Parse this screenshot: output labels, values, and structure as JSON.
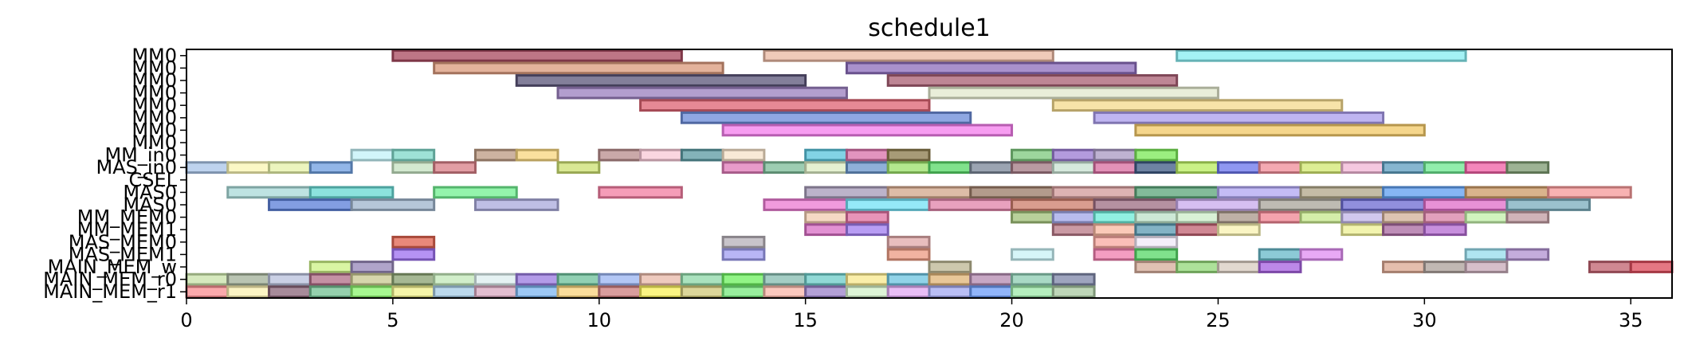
{
  "chart_data": {
    "type": "gantt",
    "title": "schedule1",
    "xlim": [
      0,
      36
    ],
    "x_ticks": [
      0,
      5,
      10,
      15,
      20,
      25,
      30,
      35
    ],
    "rows": [
      "MM0",
      "MM0",
      "MM0",
      "MM0",
      "MM0",
      "MM0",
      "MM0",
      "MM0",
      "MM_in0",
      "MAS_in0",
      "CSEL",
      "MAS0",
      "MAS0",
      "MM_MEM0",
      "MM_MEM1",
      "MAS_MEM0",
      "MAS_MEM1",
      "MAIN_MEM_w",
      "MAIN_MEM_r0",
      "MAIN_MEM_r1"
    ],
    "tasks": [
      {
        "row": 0,
        "start": 5,
        "end": 12,
        "color": "#a8485e"
      },
      {
        "row": 0,
        "start": 14,
        "end": 21,
        "color": "#e9b8a2"
      },
      {
        "row": 0,
        "start": 24,
        "end": 31,
        "color": "#86edf2"
      },
      {
        "row": 1,
        "start": 6,
        "end": 13,
        "color": "#d9987a"
      },
      {
        "row": 1,
        "start": 16,
        "end": 23,
        "color": "#8c6cbc"
      },
      {
        "row": 2,
        "start": 8,
        "end": 15,
        "color": "#5a5478"
      },
      {
        "row": 2,
        "start": 17,
        "end": 24,
        "color": "#a85d72"
      },
      {
        "row": 3,
        "start": 9,
        "end": 16,
        "color": "#9a7ebe"
      },
      {
        "row": 3,
        "start": 18,
        "end": 25,
        "color": "#e2e8cc"
      },
      {
        "row": 4,
        "start": 11,
        "end": 18,
        "color": "#dd6271"
      },
      {
        "row": 4,
        "start": 21,
        "end": 28,
        "color": "#f4d98c"
      },
      {
        "row": 5,
        "start": 12,
        "end": 19,
        "color": "#6a8ad8"
      },
      {
        "row": 5,
        "start": 22,
        "end": 29,
        "color": "#aa9cec"
      },
      {
        "row": 6,
        "start": 13,
        "end": 20,
        "color": "#f47cec"
      },
      {
        "row": 6,
        "start": 23,
        "end": 30,
        "color": "#f2c866"
      },
      {
        "row": 8,
        "start": 4,
        "end": 5,
        "color": "#c2f2f8"
      },
      {
        "row": 8,
        "start": 5,
        "end": 6,
        "color": "#7ed8c8"
      },
      {
        "row": 8,
        "start": 7,
        "end": 8,
        "color": "#bc9a82"
      },
      {
        "row": 8,
        "start": 8,
        "end": 9,
        "color": "#f8d67e"
      },
      {
        "row": 8,
        "start": 10,
        "end": 11,
        "color": "#b88c8c"
      },
      {
        "row": 8,
        "start": 11,
        "end": 12,
        "color": "#f8c8d6"
      },
      {
        "row": 8,
        "start": 12,
        "end": 13,
        "color": "#5a9aa2"
      },
      {
        "row": 8,
        "start": 13,
        "end": 14,
        "color": "#f6e2c8"
      },
      {
        "row": 8,
        "start": 15,
        "end": 16,
        "color": "#58c4dc"
      },
      {
        "row": 8,
        "start": 16,
        "end": 17,
        "color": "#d870a8"
      },
      {
        "row": 8,
        "start": 17,
        "end": 18,
        "color": "#8a7a4a"
      },
      {
        "row": 8,
        "start": 20,
        "end": 21,
        "color": "#7cc87c"
      },
      {
        "row": 8,
        "start": 21,
        "end": 22,
        "color": "#9a7ad2"
      },
      {
        "row": 8,
        "start": 22,
        "end": 23,
        "color": "#a898c2"
      },
      {
        "row": 8,
        "start": 23,
        "end": 24,
        "color": "#7ae856"
      },
      {
        "row": 9,
        "start": 0,
        "end": 1,
        "color": "#a8c4e8"
      },
      {
        "row": 9,
        "start": 1,
        "end": 2,
        "color": "#faf6b2"
      },
      {
        "row": 9,
        "start": 2,
        "end": 3,
        "color": "#e6f2a8"
      },
      {
        "row": 9,
        "start": 3,
        "end": 4,
        "color": "#6e9ee0"
      },
      {
        "row": 9,
        "start": 5,
        "end": 6,
        "color": "#c4e2c0"
      },
      {
        "row": 9,
        "start": 6,
        "end": 7,
        "color": "#d87e86"
      },
      {
        "row": 9,
        "start": 9,
        "end": 10,
        "color": "#cce070"
      },
      {
        "row": 9,
        "start": 13,
        "end": 14,
        "color": "#e07ab8"
      },
      {
        "row": 9,
        "start": 14,
        "end": 15,
        "color": "#7cbc98"
      },
      {
        "row": 9,
        "start": 15,
        "end": 16,
        "color": "#dcecc2"
      },
      {
        "row": 9,
        "start": 16,
        "end": 17,
        "color": "#6a96cc"
      },
      {
        "row": 9,
        "start": 17,
        "end": 18,
        "color": "#9ae068"
      },
      {
        "row": 9,
        "start": 18,
        "end": 19,
        "color": "#56d866"
      },
      {
        "row": 9,
        "start": 19,
        "end": 20,
        "color": "#7a8698"
      },
      {
        "row": 9,
        "start": 20,
        "end": 21,
        "color": "#a27882"
      },
      {
        "row": 9,
        "start": 21,
        "end": 22,
        "color": "#c8e2d2"
      },
      {
        "row": 9,
        "start": 22,
        "end": 23,
        "color": "#d86ca0"
      },
      {
        "row": 9,
        "start": 23,
        "end": 24,
        "color": "#3e5a84"
      },
      {
        "row": 9,
        "start": 24,
        "end": 25,
        "color": "#b8ec5e"
      },
      {
        "row": 9,
        "start": 25,
        "end": 26,
        "color": "#6a74ec"
      },
      {
        "row": 9,
        "start": 26,
        "end": 27,
        "color": "#f08c98"
      },
      {
        "row": 9,
        "start": 27,
        "end": 28,
        "color": "#d2e870"
      },
      {
        "row": 9,
        "start": 28,
        "end": 29,
        "color": "#f2b6d6"
      },
      {
        "row": 9,
        "start": 29,
        "end": 30,
        "color": "#5e9ec0"
      },
      {
        "row": 9,
        "start": 30,
        "end": 31,
        "color": "#6ce890"
      },
      {
        "row": 9,
        "start": 31,
        "end": 32,
        "color": "#f05ea4"
      },
      {
        "row": 9,
        "start": 32,
        "end": 33,
        "color": "#7c9a70"
      },
      {
        "row": 11,
        "start": 1,
        "end": 3,
        "color": "#a8dad8"
      },
      {
        "row": 11,
        "start": 3,
        "end": 5,
        "color": "#66d8d2"
      },
      {
        "row": 11,
        "start": 6,
        "end": 8,
        "color": "#70f090"
      },
      {
        "row": 11,
        "start": 10,
        "end": 12,
        "color": "#f27ca0"
      },
      {
        "row": 11,
        "start": 15,
        "end": 17,
        "color": "#a69ab8"
      },
      {
        "row": 11,
        "start": 17,
        "end": 19,
        "color": "#d2a68a"
      },
      {
        "row": 11,
        "start": 19,
        "end": 21,
        "color": "#9a7a66"
      },
      {
        "row": 11,
        "start": 21,
        "end": 23,
        "color": "#d29a9a"
      },
      {
        "row": 11,
        "start": 23,
        "end": 25,
        "color": "#5aa478"
      },
      {
        "row": 11,
        "start": 25,
        "end": 27,
        "color": "#b0a6f2"
      },
      {
        "row": 11,
        "start": 27,
        "end": 29,
        "color": "#b0a688"
      },
      {
        "row": 11,
        "start": 29,
        "end": 31,
        "color": "#5e9ef0"
      },
      {
        "row": 11,
        "start": 31,
        "end": 33,
        "color": "#cc9a66"
      },
      {
        "row": 11,
        "start": 33,
        "end": 35,
        "color": "#f69898"
      },
      {
        "row": 12,
        "start": 2,
        "end": 4,
        "color": "#5a7ed8"
      },
      {
        "row": 12,
        "start": 4,
        "end": 6,
        "color": "#9eb4cc"
      },
      {
        "row": 12,
        "start": 7,
        "end": 9,
        "color": "#aaaadc"
      },
      {
        "row": 12,
        "start": 14,
        "end": 16,
        "color": "#ec7ad2"
      },
      {
        "row": 12,
        "start": 16,
        "end": 18,
        "color": "#72e2f6"
      },
      {
        "row": 12,
        "start": 18,
        "end": 20,
        "color": "#e082a8"
      },
      {
        "row": 12,
        "start": 20,
        "end": 22,
        "color": "#cc7c6a"
      },
      {
        "row": 12,
        "start": 22,
        "end": 24,
        "color": "#9c6c82"
      },
      {
        "row": 12,
        "start": 24,
        "end": 26,
        "color": "#c8aaec"
      },
      {
        "row": 12,
        "start": 26,
        "end": 28,
        "color": "#a8a49a"
      },
      {
        "row": 12,
        "start": 28,
        "end": 30,
        "color": "#6c6ad2"
      },
      {
        "row": 12,
        "start": 30,
        "end": 32,
        "color": "#e06cc8"
      },
      {
        "row": 12,
        "start": 32,
        "end": 34,
        "color": "#7aacbc"
      },
      {
        "row": 13,
        "start": 15,
        "end": 16,
        "color": "#f2ccb0"
      },
      {
        "row": 13,
        "start": 16,
        "end": 17,
        "color": "#e070a0"
      },
      {
        "row": 13,
        "start": 20,
        "end": 21,
        "color": "#a0c078"
      },
      {
        "row": 13,
        "start": 21,
        "end": 22,
        "color": "#a0a6e8"
      },
      {
        "row": 13,
        "start": 22,
        "end": 23,
        "color": "#6cecd8"
      },
      {
        "row": 13,
        "start": 23,
        "end": 24,
        "color": "#bce2c8"
      },
      {
        "row": 13,
        "start": 24,
        "end": 25,
        "color": "#ccecc8"
      },
      {
        "row": 13,
        "start": 25,
        "end": 26,
        "color": "#a89688"
      },
      {
        "row": 13,
        "start": 26,
        "end": 27,
        "color": "#f08492"
      },
      {
        "row": 13,
        "start": 27,
        "end": 28,
        "color": "#c6e88c"
      },
      {
        "row": 13,
        "start": 28,
        "end": 29,
        "color": "#c2b6e8"
      },
      {
        "row": 13,
        "start": 29,
        "end": 30,
        "color": "#d2b098"
      },
      {
        "row": 13,
        "start": 30,
        "end": 31,
        "color": "#d880a6"
      },
      {
        "row": 13,
        "start": 31,
        "end": 32,
        "color": "#c2f0a8"
      },
      {
        "row": 13,
        "start": 32,
        "end": 33,
        "color": "#c09aa0"
      },
      {
        "row": 14,
        "start": 15,
        "end": 16,
        "color": "#d86cc4"
      },
      {
        "row": 14,
        "start": 16,
        "end": 17,
        "color": "#a07cf0"
      },
      {
        "row": 14,
        "start": 21,
        "end": 22,
        "color": "#b87886"
      },
      {
        "row": 14,
        "start": 22,
        "end": 23,
        "color": "#f8b8a0"
      },
      {
        "row": 14,
        "start": 23,
        "end": 24,
        "color": "#5a9ab2"
      },
      {
        "row": 14,
        "start": 24,
        "end": 25,
        "color": "#c06070"
      },
      {
        "row": 14,
        "start": 25,
        "end": 26,
        "color": "#f8f2b0"
      },
      {
        "row": 14,
        "start": 28,
        "end": 29,
        "color": "#eef094"
      },
      {
        "row": 14,
        "start": 29,
        "end": 30,
        "color": "#a868a0"
      },
      {
        "row": 14,
        "start": 30,
        "end": 31,
        "color": "#b46ad2"
      },
      {
        "row": 15,
        "start": 5,
        "end": 6,
        "color": "#e0624e"
      },
      {
        "row": 15,
        "start": 13,
        "end": 14,
        "color": "#b6b0b8"
      },
      {
        "row": 15,
        "start": 17,
        "end": 18,
        "color": "#e0a8a8"
      },
      {
        "row": 15,
        "start": 22,
        "end": 23,
        "color": "#f8a8a0"
      },
      {
        "row": 15,
        "start": 23,
        "end": 24,
        "color": "#f0e8f8"
      },
      {
        "row": 16,
        "start": 5,
        "end": 6,
        "color": "#9c6ef0"
      },
      {
        "row": 16,
        "start": 13,
        "end": 14,
        "color": "#a09ef2"
      },
      {
        "row": 16,
        "start": 17,
        "end": 18,
        "color": "#ec9a82"
      },
      {
        "row": 16,
        "start": 20,
        "end": 21,
        "color": "#c8f2f6"
      },
      {
        "row": 16,
        "start": 22,
        "end": 23,
        "color": "#f07cac"
      },
      {
        "row": 16,
        "start": 23,
        "end": 24,
        "color": "#56d866"
      },
      {
        "row": 16,
        "start": 26,
        "end": 27,
        "color": "#66b8c8"
      },
      {
        "row": 16,
        "start": 27,
        "end": 28,
        "color": "#e08cf2"
      },
      {
        "row": 16,
        "start": 31,
        "end": 32,
        "color": "#96dcec"
      },
      {
        "row": 16,
        "start": 32,
        "end": 33,
        "color": "#b090d0"
      },
      {
        "row": 17,
        "start": 3,
        "end": 4,
        "color": "#ccf284"
      },
      {
        "row": 17,
        "start": 4,
        "end": 5,
        "color": "#9686b8"
      },
      {
        "row": 17,
        "start": 18,
        "end": 19,
        "color": "#bcb692"
      },
      {
        "row": 17,
        "start": 23,
        "end": 24,
        "color": "#d6ac9a"
      },
      {
        "row": 17,
        "start": 24,
        "end": 25,
        "color": "#92d878"
      },
      {
        "row": 17,
        "start": 25,
        "end": 26,
        "color": "#d8ccc0"
      },
      {
        "row": 17,
        "start": 26,
        "end": 27,
        "color": "#a660e0"
      },
      {
        "row": 17,
        "start": 29,
        "end": 30,
        "color": "#dca892"
      },
      {
        "row": 17,
        "start": 30,
        "end": 31,
        "color": "#aca09a"
      },
      {
        "row": 17,
        "start": 31,
        "end": 32,
        "color": "#c8aab8"
      },
      {
        "row": 17,
        "start": 34,
        "end": 35,
        "color": "#c0606e"
      },
      {
        "row": 17,
        "start": 35,
        "end": 36,
        "color": "#dc4a5a"
      },
      {
        "row": 18,
        "start": 0,
        "end": 1,
        "color": "#c8e2a8"
      },
      {
        "row": 18,
        "start": 1,
        "end": 2,
        "color": "#a2b098"
      },
      {
        "row": 18,
        "start": 2,
        "end": 3,
        "color": "#b8c0dc"
      },
      {
        "row": 18,
        "start": 3,
        "end": 4,
        "color": "#b06c86"
      },
      {
        "row": 18,
        "start": 4,
        "end": 5,
        "color": "#c8c890"
      },
      {
        "row": 18,
        "start": 5,
        "end": 6,
        "color": "#88a070"
      },
      {
        "row": 18,
        "start": 6,
        "end": 7,
        "color": "#c2e8b8"
      },
      {
        "row": 18,
        "start": 7,
        "end": 8,
        "color": "#dceeef"
      },
      {
        "row": 18,
        "start": 8,
        "end": 9,
        "color": "#9a7ae0"
      },
      {
        "row": 18,
        "start": 9,
        "end": 10,
        "color": "#6cc09a"
      },
      {
        "row": 18,
        "start": 10,
        "end": 11,
        "color": "#9ab4f2"
      },
      {
        "row": 18,
        "start": 11,
        "end": 12,
        "color": "#e8b8a8"
      },
      {
        "row": 18,
        "start": 12,
        "end": 13,
        "color": "#8ed8a8"
      },
      {
        "row": 18,
        "start": 13,
        "end": 14,
        "color": "#6cf05e"
      },
      {
        "row": 18,
        "start": 14,
        "end": 15,
        "color": "#86bcb0"
      },
      {
        "row": 18,
        "start": 15,
        "end": 16,
        "color": "#6cccc8"
      },
      {
        "row": 18,
        "start": 16,
        "end": 17,
        "color": "#f8e88c"
      },
      {
        "row": 18,
        "start": 17,
        "end": 18,
        "color": "#6cc4e0"
      },
      {
        "row": 18,
        "start": 18,
        "end": 19,
        "color": "#e0b476"
      },
      {
        "row": 18,
        "start": 19,
        "end": 20,
        "color": "#b48ab0"
      },
      {
        "row": 18,
        "start": 20,
        "end": 21,
        "color": "#8cccb2"
      },
      {
        "row": 18,
        "start": 21,
        "end": 22,
        "color": "#7e86a8"
      },
      {
        "row": 19,
        "start": 0,
        "end": 1,
        "color": "#f88c90"
      },
      {
        "row": 19,
        "start": 1,
        "end": 2,
        "color": "#faf0b0"
      },
      {
        "row": 19,
        "start": 2,
        "end": 3,
        "color": "#8a6478"
      },
      {
        "row": 19,
        "start": 3,
        "end": 4,
        "color": "#72c092"
      },
      {
        "row": 19,
        "start": 4,
        "end": 5,
        "color": "#8af46c"
      },
      {
        "row": 19,
        "start": 5,
        "end": 6,
        "color": "#f0f08c"
      },
      {
        "row": 19,
        "start": 6,
        "end": 7,
        "color": "#a6cce6"
      },
      {
        "row": 19,
        "start": 7,
        "end": 8,
        "color": "#d8a8c0"
      },
      {
        "row": 19,
        "start": 8,
        "end": 9,
        "color": "#7cb6f0"
      },
      {
        "row": 19,
        "start": 9,
        "end": 10,
        "color": "#f8d27a"
      },
      {
        "row": 19,
        "start": 10,
        "end": 11,
        "color": "#cc7c7c"
      },
      {
        "row": 19,
        "start": 11,
        "end": 12,
        "color": "#f8f05a"
      },
      {
        "row": 19,
        "start": 12,
        "end": 13,
        "color": "#d0c878"
      },
      {
        "row": 19,
        "start": 13,
        "end": 14,
        "color": "#76e87c"
      },
      {
        "row": 19,
        "start": 14,
        "end": 15,
        "color": "#f8b6a8"
      },
      {
        "row": 19,
        "start": 15,
        "end": 16,
        "color": "#9a80c8"
      },
      {
        "row": 19,
        "start": 16,
        "end": 17,
        "color": "#d2f0c8"
      },
      {
        "row": 19,
        "start": 17,
        "end": 18,
        "color": "#e0a8f2"
      },
      {
        "row": 19,
        "start": 18,
        "end": 19,
        "color": "#a2a8f0"
      },
      {
        "row": 19,
        "start": 19,
        "end": 20,
        "color": "#6c9cf8"
      },
      {
        "row": 19,
        "start": 20,
        "end": 21,
        "color": "#9ce8a8"
      },
      {
        "row": 19,
        "start": 21,
        "end": 22,
        "color": "#a8c8a0"
      }
    ]
  }
}
